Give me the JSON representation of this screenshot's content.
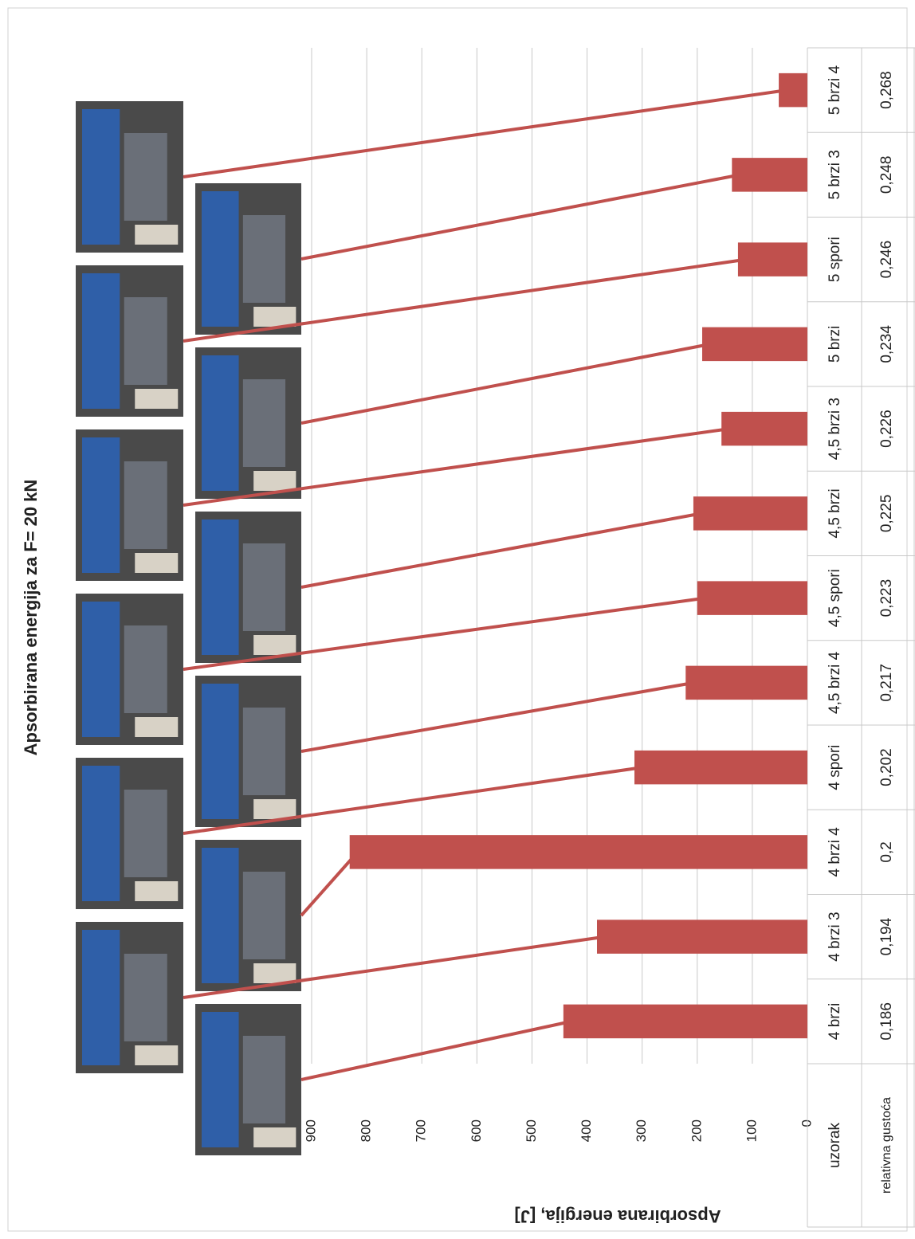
{
  "chart_data": {
    "type": "bar",
    "title": "Apsorbirana energija za F= 20 kN",
    "y_label": "Apsorbirana energija, [J]",
    "categories": [
      "4 brzi",
      "4 brzi 3",
      "4 brzi 4",
      "4 spori",
      "4,5 brzi 4",
      "4,5 spori",
      "4,5 brzi",
      "4,5 brzi 3",
      "5 brzi",
      "5 spori",
      "5 brzi 3",
      "5 brzi 4"
    ],
    "values": [
      443,
      382,
      831,
      314,
      221,
      200,
      207,
      156,
      191,
      126,
      137,
      52
    ],
    "color": "#c0504d",
    "ylim": [
      0,
      900
    ],
    "yticks": [
      0,
      100,
      200,
      300,
      400,
      500,
      600,
      700,
      800,
      900
    ],
    "grid": true,
    "table": {
      "row_labels": [
        "uzorak",
        "relativna gustoća"
      ],
      "densities": [
        "0,186",
        "0,194",
        "0,2",
        "0,202",
        "0,217",
        "0,223",
        "0,225",
        "0,226",
        "0,234",
        "0,246",
        "0,248",
        "0,268"
      ]
    }
  }
}
